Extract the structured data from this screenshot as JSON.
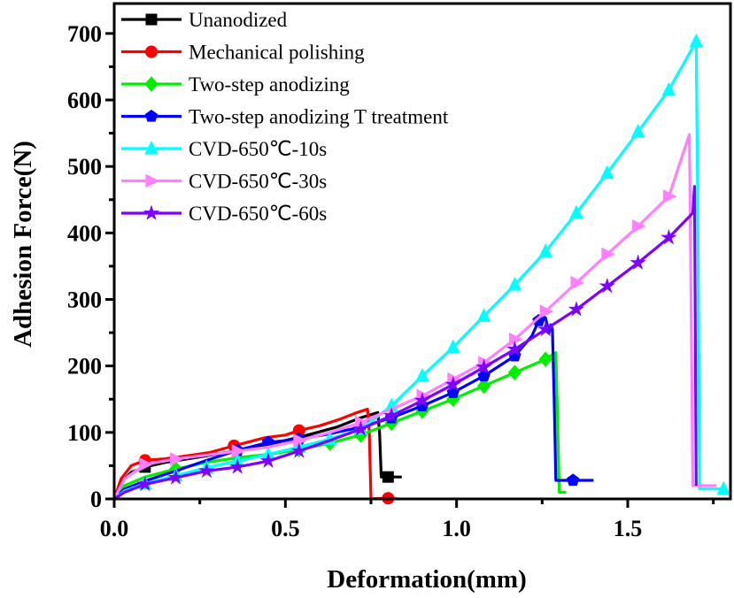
{
  "chart_data": {
    "type": "line",
    "title": "",
    "xlabel": "Deformation(mm)",
    "ylabel": "Adhesion Force(N)",
    "xlim": [
      0,
      1.8
    ],
    "ylim": [
      0,
      745
    ],
    "x_ticks": [
      0.0,
      0.5,
      1.0,
      1.5
    ],
    "x_tick_labels": [
      "0.0",
      "0.5",
      "1.0",
      "1.5"
    ],
    "x_minor_ticks": [
      0.25,
      0.75,
      1.25,
      1.75
    ],
    "y_ticks": [
      0,
      100,
      200,
      300,
      400,
      500,
      600,
      700
    ],
    "y_tick_labels": [
      "0",
      "100",
      "200",
      "300",
      "400",
      "500",
      "600",
      "700"
    ],
    "y_minor_ticks": [
      50,
      150,
      250,
      350,
      450,
      550,
      650
    ],
    "grid": false,
    "legend_position": "top-left",
    "series": [
      {
        "name": "Unanodized",
        "color": "#000000",
        "marker": "square",
        "x": [
          0,
          0.02,
          0.05,
          0.09,
          0.15,
          0.25,
          0.35,
          0.45,
          0.55,
          0.65,
          0.72,
          0.77,
          0.775,
          0.78,
          0.8,
          0.84
        ],
        "y": [
          0,
          25,
          40,
          48,
          55,
          63,
          72,
          82,
          94,
          108,
          122,
          130,
          100,
          33,
          33,
          33
        ],
        "marker_x": [
          0.09,
          0.8
        ],
        "marker_y": [
          48,
          33
        ]
      },
      {
        "name": "Mechanical polishing",
        "color": "#ff0000",
        "marker": "circle",
        "x": [
          0,
          0.02,
          0.05,
          0.09,
          0.14,
          0.2,
          0.28,
          0.35,
          0.44,
          0.5,
          0.54,
          0.6,
          0.66,
          0.71,
          0.74,
          0.745,
          0.75,
          0.8,
          0.83
        ],
        "y": [
          0,
          30,
          50,
          58,
          60,
          64,
          70,
          80,
          92,
          96,
          103,
          110,
          120,
          130,
          135,
          100,
          0,
          1,
          0
        ],
        "marker_x": [
          0.09,
          0.35,
          0.54,
          0.8
        ],
        "marker_y": [
          58,
          80,
          103,
          1
        ]
      },
      {
        "name": "Two-step anodizing",
        "color": "#00ee00",
        "marker": "diamond",
        "x": [
          0,
          0.03,
          0.09,
          0.18,
          0.27,
          0.36,
          0.45,
          0.54,
          0.63,
          0.72,
          0.81,
          0.9,
          0.99,
          1.08,
          1.17,
          1.26,
          1.29,
          1.295,
          1.3,
          1.32
        ],
        "y": [
          0,
          20,
          33,
          45,
          55,
          62,
          67,
          74,
          84,
          96,
          114,
          132,
          150,
          170,
          190,
          210,
          220,
          120,
          10,
          10
        ],
        "marker_x": [
          0.18,
          0.36,
          0.54,
          0.63,
          0.72,
          0.81,
          0.9,
          0.99,
          1.08,
          1.17,
          1.26
        ],
        "marker_y": [
          45,
          62,
          74,
          84,
          96,
          114,
          132,
          150,
          170,
          190,
          210
        ]
      },
      {
        "name": "Two-step anodizing T treatment",
        "color": "#0000ff",
        "marker": "pentagon",
        "x": [
          0,
          0.03,
          0.09,
          0.18,
          0.27,
          0.36,
          0.45,
          0.54,
          0.63,
          0.72,
          0.81,
          0.9,
          0.99,
          1.08,
          1.17,
          1.22,
          1.24,
          1.25,
          1.26,
          1.27,
          1.275,
          1.28,
          1.285,
          1.29,
          1.33,
          1.4
        ],
        "y": [
          0,
          15,
          27,
          42,
          58,
          73,
          85,
          90,
          98,
          108,
          122,
          140,
          160,
          185,
          215,
          245,
          268,
          275,
          272,
          250,
          262,
          255,
          150,
          28,
          28,
          28
        ],
        "marker_x": [
          0.36,
          0.45,
          0.54,
          0.72,
          0.81,
          0.9,
          0.99,
          1.08,
          1.17,
          1.24,
          1.34
        ],
        "marker_y": [
          73,
          85,
          90,
          108,
          122,
          140,
          160,
          185,
          215,
          268,
          28
        ]
      },
      {
        "name": "CVD-650℃-10s",
        "color": "#00ffff",
        "marker": "triangle-up",
        "x": [
          0,
          0.03,
          0.09,
          0.18,
          0.27,
          0.36,
          0.45,
          0.54,
          0.63,
          0.72,
          0.81,
          0.9,
          0.99,
          1.08,
          1.17,
          1.26,
          1.35,
          1.44,
          1.53,
          1.62,
          1.7,
          1.705,
          1.71,
          1.78
        ],
        "y": [
          0,
          12,
          23,
          35,
          47,
          57,
          67,
          78,
          90,
          105,
          140,
          185,
          228,
          275,
          322,
          372,
          430,
          490,
          552,
          615,
          688,
          400,
          15,
          15
        ],
        "marker_x": [
          0.09,
          0.18,
          0.27,
          0.36,
          0.45,
          0.54,
          0.63,
          0.72,
          0.81,
          0.9,
          0.99,
          1.08,
          1.17,
          1.26,
          1.35,
          1.44,
          1.53,
          1.62,
          1.7,
          1.78
        ],
        "marker_y": [
          23,
          35,
          47,
          57,
          67,
          78,
          90,
          105,
          140,
          185,
          228,
          275,
          322,
          372,
          430,
          490,
          552,
          615,
          688,
          15
        ]
      },
      {
        "name": "CVD-650℃-30s",
        "color": "#ff80ff",
        "marker": "triangle-right",
        "x": [
          0,
          0.03,
          0.09,
          0.18,
          0.27,
          0.36,
          0.45,
          0.54,
          0.63,
          0.72,
          0.81,
          0.9,
          0.99,
          1.08,
          1.17,
          1.26,
          1.35,
          1.44,
          1.53,
          1.62,
          1.68,
          1.685,
          1.69,
          1.76
        ],
        "y": [
          0,
          30,
          52,
          60,
          66,
          72,
          78,
          88,
          100,
          115,
          135,
          155,
          180,
          205,
          240,
          282,
          325,
          368,
          410,
          455,
          548,
          300,
          20,
          20
        ],
        "marker_x": [
          0.09,
          0.18,
          0.36,
          0.54,
          0.72,
          0.9,
          0.99,
          1.08,
          1.17,
          1.26,
          1.35,
          1.44,
          1.53,
          1.62
        ],
        "marker_y": [
          52,
          60,
          72,
          88,
          115,
          155,
          180,
          205,
          240,
          282,
          325,
          368,
          410,
          455
        ]
      },
      {
        "name": "CVD-650℃-60s",
        "color": "#8000ff",
        "marker": "star",
        "x": [
          0,
          0.03,
          0.09,
          0.18,
          0.27,
          0.36,
          0.45,
          0.54,
          0.63,
          0.72,
          0.81,
          0.9,
          0.99,
          1.08,
          1.17,
          1.26,
          1.35,
          1.44,
          1.53,
          1.62,
          1.69,
          1.695,
          1.7
        ],
        "y": [
          0,
          10,
          22,
          32,
          42,
          48,
          57,
          72,
          88,
          105,
          125,
          148,
          172,
          198,
          225,
          255,
          285,
          320,
          355,
          393,
          430,
          470,
          20
        ],
        "marker_x": [
          0.09,
          0.18,
          0.27,
          0.36,
          0.45,
          0.54,
          0.72,
          0.81,
          0.9,
          0.99,
          1.08,
          1.17,
          1.26,
          1.35,
          1.44,
          1.53,
          1.62
        ],
        "marker_y": [
          22,
          32,
          42,
          48,
          57,
          72,
          105,
          125,
          148,
          172,
          198,
          225,
          255,
          285,
          320,
          355,
          393
        ]
      }
    ]
  }
}
